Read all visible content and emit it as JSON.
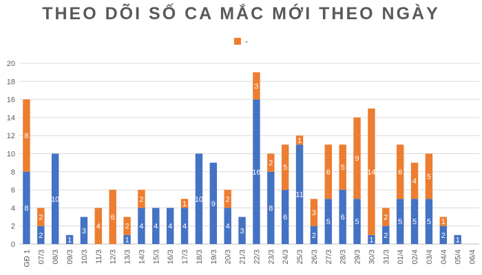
{
  "chart_data": {
    "type": "bar",
    "stacked": true,
    "title": "THEO DÕI SỐ CA MẮC MỚI THEO NGÀY",
    "legend": "top-center",
    "grid": true,
    "ylim": [
      0,
      20
    ],
    "yticks": [
      0,
      2,
      4,
      6,
      8,
      10,
      12,
      14,
      16,
      18,
      20
    ],
    "categories": [
      "GĐ 1",
      "07/3",
      "08/3",
      "09/3",
      "10/3",
      "11/3",
      "12/3",
      "13/3",
      "14/3",
      "15/3",
      "16/3",
      "17/3",
      "18/3",
      "19/3",
      "20/3",
      "21/3",
      "22/3",
      "23/3",
      "24/3",
      "25/3",
      "26/3",
      "27/3",
      "28/3",
      "29/3",
      "30/3",
      "31/3",
      "01/4",
      "02/4",
      "03/4",
      "04/4",
      "05/4",
      "06/4"
    ],
    "series": [
      {
        "color": "#4472C4",
        "values": [
          8,
          2,
          10,
          1,
          3,
          0,
          0,
          1,
          4,
          4,
          4,
          4,
          10,
          9,
          4,
          3,
          16,
          8,
          6,
          11,
          2,
          5,
          6,
          5,
          1,
          2,
          5,
          5,
          5,
          2,
          1,
          0
        ]
      },
      {
        "name": "-",
        "color": "#ED7D31",
        "values": [
          8,
          2,
          0,
          0,
          0,
          4,
          6,
          2,
          2,
          0,
          0,
          1,
          0,
          0,
          2,
          0,
          3,
          2,
          5,
          1,
          3,
          6,
          5,
          9,
          14,
          2,
          6,
          4,
          5,
          1,
          0,
          0
        ]
      }
    ]
  }
}
